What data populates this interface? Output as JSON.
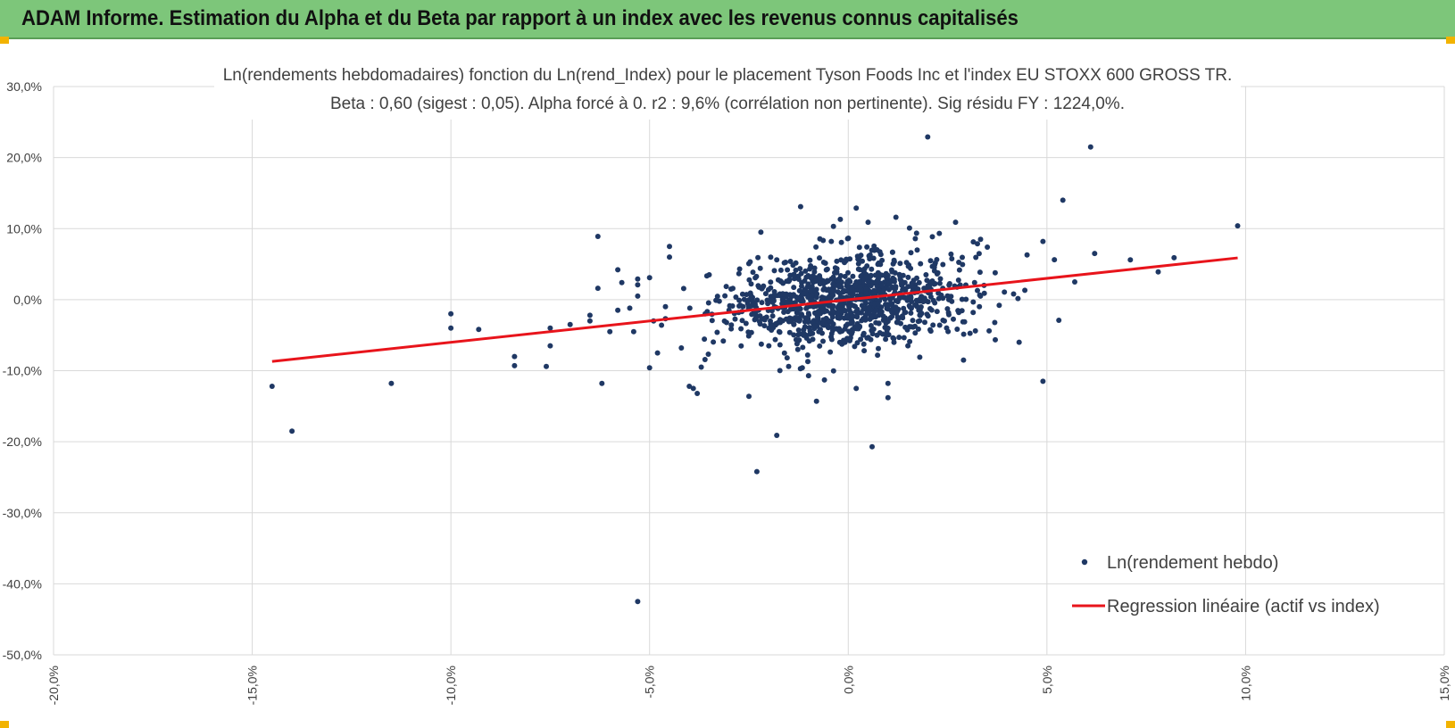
{
  "banner": {
    "title": "ADAM Informe. Estimation du Alpha et du Beta par rapport à un index avec les revenus connus capitalisés",
    "color": "#7dc67a",
    "corner_color": "#f2b300"
  },
  "chart_data": {
    "type": "scatter",
    "title_line1": "Ln(rendements hebdomadaires) fonction du Ln(rend_Index) pour le placement Tyson Foods Inc et l'index EU STOXX 600 GROSS TR.",
    "title_line2": "Beta : 0,60 (sigest : 0,05). Alpha forcé à 0. r2 : 9,6% (corrélation non pertinente). Sig résidu FY : 1224,0%.",
    "xlim": [
      -20,
      15
    ],
    "ylim": [
      -50,
      30
    ],
    "x_ticks": [
      "-20,0%",
      "-15,0%",
      "-10,0%",
      "-5,0%",
      "0,0%",
      "5,0%",
      "10,0%",
      "15,0%"
    ],
    "y_ticks": [
      "30,0%",
      "20,0%",
      "10,0%",
      "0,0%",
      "-10,0%",
      "-20,0%",
      "-30,0%",
      "-40,0%",
      "-50,0%"
    ],
    "grid": true,
    "legend_position": "bottom-right",
    "series": [
      {
        "name": "Ln(rendement hebdo)",
        "kind": "scatter",
        "color": "#1f3864",
        "points": [
          [
            -14.5,
            -12.2
          ],
          [
            -14,
            -18.5
          ],
          [
            -11.5,
            -11.8
          ],
          [
            -10,
            -4
          ],
          [
            -10,
            -2
          ],
          [
            -9.3,
            -4.2
          ],
          [
            -8.4,
            -8
          ],
          [
            -8.4,
            -9.3
          ],
          [
            -7.6,
            -9.4
          ],
          [
            -7.5,
            -6.5
          ],
          [
            -7.5,
            -4
          ],
          [
            -7,
            -3.5
          ],
          [
            -6.5,
            -3
          ],
          [
            -6.5,
            -2.2
          ],
          [
            -6.3,
            8.9
          ],
          [
            -6.3,
            1.6
          ],
          [
            -6.2,
            -11.8
          ],
          [
            -6,
            -4.5
          ],
          [
            -5.8,
            4.2
          ],
          [
            -5.8,
            -1.5
          ],
          [
            -5.7,
            2.4
          ],
          [
            -5.5,
            -1.2
          ],
          [
            -5.4,
            -4.5
          ],
          [
            -5.3,
            0.5
          ],
          [
            -5.3,
            2.1
          ],
          [
            -5.3,
            2.9
          ],
          [
            -5.3,
            -42.5
          ],
          [
            -5,
            3.1
          ],
          [
            -5,
            -9.6
          ],
          [
            -4.9,
            -3
          ],
          [
            -4.8,
            -7.5
          ],
          [
            -4.7,
            -3.6
          ],
          [
            -4.6,
            -1
          ],
          [
            -4.5,
            6
          ],
          [
            -4.5,
            7.5
          ],
          [
            -4.2,
            -6.8
          ],
          [
            -4,
            -12.2
          ],
          [
            -3.9,
            -12.5
          ],
          [
            -3.8,
            -13.2
          ],
          [
            -3.7,
            -9.5
          ],
          [
            -3.6,
            -2
          ],
          [
            -3.5,
            3.5
          ],
          [
            -3.3,
            -4.6
          ],
          [
            -3,
            -1.5
          ],
          [
            -2.7,
            -4.1
          ],
          [
            -2.5,
            -13.6
          ],
          [
            -2.3,
            -24.2
          ],
          [
            -2.2,
            9.5
          ],
          [
            -2,
            -6.5
          ],
          [
            -1.8,
            -19.1
          ],
          [
            -1.5,
            -9.4
          ],
          [
            -1.2,
            13.1
          ],
          [
            -1,
            -10.7
          ],
          [
            -0.8,
            -14.3
          ],
          [
            -0.6,
            -11.3
          ],
          [
            -0.2,
            11.3
          ],
          [
            0.2,
            -12.5
          ],
          [
            0.2,
            12.9
          ],
          [
            0.5,
            10.9
          ],
          [
            0.6,
            -20.7
          ],
          [
            1,
            -11.8
          ],
          [
            1,
            -13.8
          ],
          [
            1.2,
            11.6
          ],
          [
            1.5,
            -6.5
          ],
          [
            1.8,
            -8.1
          ],
          [
            2,
            22.9
          ],
          [
            2.3,
            -3.6
          ],
          [
            2.7,
            10.9
          ],
          [
            2.9,
            -8.5
          ],
          [
            3.2,
            -4.4
          ],
          [
            3.5,
            7.4
          ],
          [
            3.8,
            -0.8
          ],
          [
            4.3,
            -6
          ],
          [
            4.5,
            6.3
          ],
          [
            4.9,
            8.2
          ],
          [
            4.9,
            -11.5
          ],
          [
            5.3,
            -2.9
          ],
          [
            5.4,
            14
          ],
          [
            5.7,
            2.5
          ],
          [
            6.1,
            21.5
          ],
          [
            6.2,
            6.5
          ],
          [
            7.1,
            5.6
          ],
          [
            7.8,
            3.9
          ],
          [
            8.2,
            5.9
          ],
          [
            9.8,
            10.4
          ]
        ]
      },
      {
        "name": "Regression linéaire (actif vs index)",
        "kind": "line",
        "color": "#e8141b",
        "beta": 0.6,
        "x_range": [
          -14.5,
          9.8
        ]
      }
    ],
    "cloud": {
      "center_x": 0,
      "center_y": 0,
      "spread_x": 1.5,
      "spread_y": 3.2,
      "count": 1050
    }
  }
}
